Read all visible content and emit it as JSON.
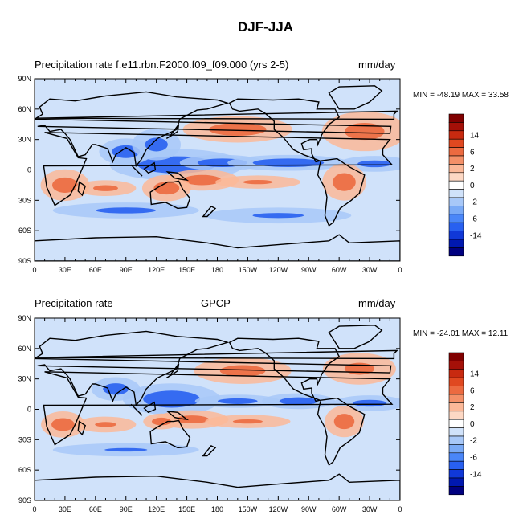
{
  "title": "DJF-JJA",
  "panels": [
    {
      "left_title": "Precipitation rate f.e11.rbn.F2000.f09_f09.000 (yrs 2-5)",
      "center_title": "",
      "right_title": "mm/day",
      "minmax": "MIN = -48.19 MAX =  33.58"
    },
    {
      "left_title": "Precipitation rate",
      "center_title": "GPCP",
      "right_title": "mm/day",
      "minmax": "MIN = -24.01 MAX =  12.11"
    }
  ],
  "lat_ticks": [
    "90N",
    "60N",
    "30N",
    "0",
    "30S",
    "60S",
    "90S"
  ],
  "lon_ticks": [
    "0",
    "30E",
    "60E",
    "90E",
    "120E",
    "150E",
    "180",
    "150W",
    "120W",
    "90W",
    "60W",
    "30W",
    "0"
  ],
  "colorbar": {
    "labels": [
      "14",
      "6",
      "2",
      "0",
      "-2",
      "-6",
      "-14"
    ],
    "colors": [
      "#000080",
      "#0018b0",
      "#1038d8",
      "#2860f0",
      "#4a86f8",
      "#7aaaf6",
      "#a8c8f8",
      "#d0e2fa",
      "#ffffff",
      "#fdd8c4",
      "#fbb898",
      "#f49068",
      "#ec6a40",
      "#e04820",
      "#c82a10",
      "#a41008",
      "#800000"
    ]
  },
  "map_colors": {
    "wet": "#ec6a40",
    "wet_light": "#fbb898",
    "dry": "#2860f0",
    "dry_light": "#a8c8f8",
    "background": "#d0e2fa",
    "coast": "#000000"
  }
}
